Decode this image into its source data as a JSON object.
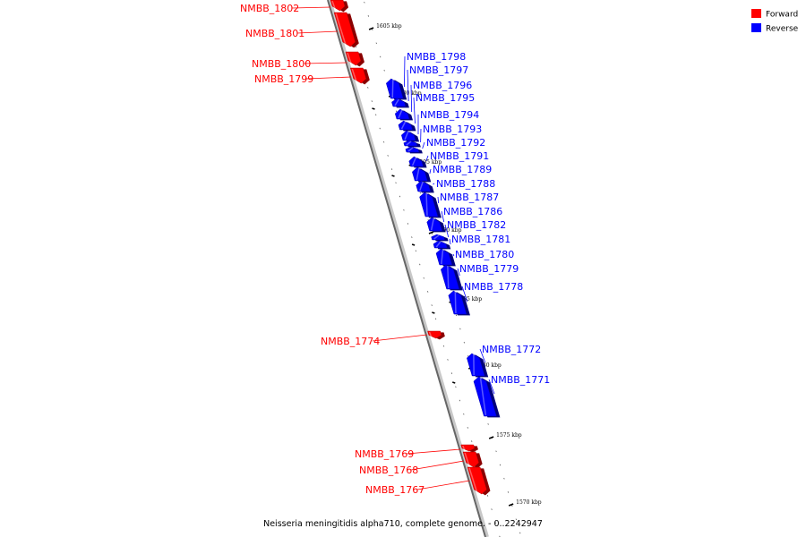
{
  "legend": {
    "forward": {
      "label": "Forward",
      "color": "#ff0000"
    },
    "reverse": {
      "label": "Reverse",
      "color": "#0000ff"
    }
  },
  "caption": "Neisseria meningitidis alpha710, complete genome. - 0..2242947",
  "ticks": [
    "1605 kbp",
    "1600 kbp",
    "1595 kbp",
    "1590 kbp",
    "1585 kbp",
    "1580 kbp",
    "1575 kbp",
    "1570 kbp"
  ],
  "genes": [
    {
      "name": "NMBB_1802",
      "strand": "forward"
    },
    {
      "name": "NMBB_1801",
      "strand": "forward"
    },
    {
      "name": "NMBB_1800",
      "strand": "forward"
    },
    {
      "name": "NMBB_1799",
      "strand": "forward"
    },
    {
      "name": "NMBB_1798",
      "strand": "reverse"
    },
    {
      "name": "NMBB_1797",
      "strand": "reverse"
    },
    {
      "name": "NMBB_1796",
      "strand": "reverse"
    },
    {
      "name": "NMBB_1795",
      "strand": "reverse"
    },
    {
      "name": "NMBB_1794",
      "strand": "reverse"
    },
    {
      "name": "NMBB_1793",
      "strand": "reverse"
    },
    {
      "name": "NMBB_1792",
      "strand": "reverse"
    },
    {
      "name": "NMBB_1791",
      "strand": "reverse"
    },
    {
      "name": "NMBB_1789",
      "strand": "reverse"
    },
    {
      "name": "NMBB_1788",
      "strand": "reverse"
    },
    {
      "name": "NMBB_1787",
      "strand": "reverse"
    },
    {
      "name": "NMBB_1786",
      "strand": "reverse"
    },
    {
      "name": "NMBB_1782",
      "strand": "reverse"
    },
    {
      "name": "NMBB_1781",
      "strand": "reverse"
    },
    {
      "name": "NMBB_1780",
      "strand": "reverse"
    },
    {
      "name": "NMBB_1779",
      "strand": "reverse"
    },
    {
      "name": "NMBB_1778",
      "strand": "reverse"
    },
    {
      "name": "NMBB_1774",
      "strand": "forward"
    },
    {
      "name": "NMBB_1772",
      "strand": "reverse"
    },
    {
      "name": "NMBB_1771",
      "strand": "reverse"
    },
    {
      "name": "NMBB_1769",
      "strand": "forward"
    },
    {
      "name": "NMBB_1768",
      "strand": "forward"
    },
    {
      "name": "NMBB_1767",
      "strand": "forward"
    }
  ]
}
